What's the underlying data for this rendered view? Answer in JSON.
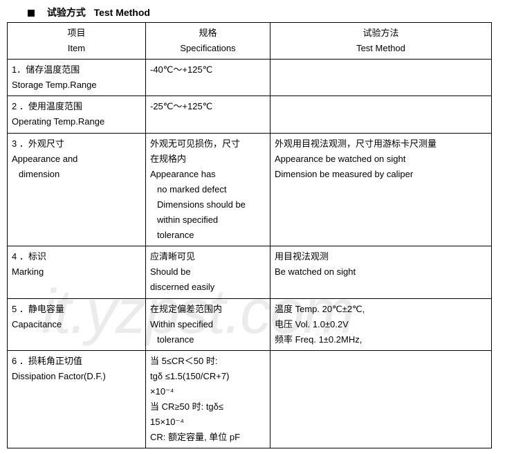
{
  "heading": {
    "cn": "试验方式",
    "en": "Test Method"
  },
  "header": {
    "item_cn": "项目",
    "item_en": "Item",
    "spec_cn": "规格",
    "spec_en": "Specifications",
    "method_cn": "试验方法",
    "method_en": "Test Method"
  },
  "rows": {
    "r1": {
      "item_cn": "1．储存温度范围",
      "item_en": "Storage Temp.Range",
      "spec": "-40℃～+125℃",
      "method": ""
    },
    "r2": {
      "item_cn": "2 ．使用温度范围",
      "item_en": "Operating Temp.Range",
      "spec": "-25℃～+125℃",
      "method": ""
    },
    "r3": {
      "item_cn": "3 ．外观尺寸",
      "item_en1": "Appearance and",
      "item_en2": "dimension",
      "spec_cn1": "外观无可见损伤，尺寸",
      "spec_cn2": "在规格内",
      "spec_en1": "Appearance has",
      "spec_en2": "no marked defect",
      "spec_en3": "Dimensions should be",
      "spec_en4": "within    specified",
      "spec_en5": "tolerance",
      "method_cn": "外观用目视法观测，尺寸用游标卡尺测量",
      "method_en1": "Appearance be watched on sight",
      "method_en2": "Dimension be measured by caliper"
    },
    "r4": {
      "item_cn": "4 ．标识",
      "item_en": "Marking",
      "spec_cn": "应清晰可见",
      "spec_en1": "Should be",
      "spec_en2": "discerned easily",
      "method_cn": "用目视法观测",
      "method_en": "Be watched on sight"
    },
    "r5": {
      "item_cn": "5 ．静电容量",
      "item_en": "Capacitance",
      "spec_cn": "在规定偏差范围内",
      "spec_en1": "Within specified",
      "spec_en2": "tolerance",
      "method_l1": "温度 Temp. 20℃±2℃,",
      "method_l2": "电压 Vol.   1.0±0.2V",
      "method_l3": "频率 Freq. 1±0.2MHz,"
    },
    "r6": {
      "item_cn": "6 ．损耗角正切值",
      "item_en": "Dissipation Factor(D.F.)",
      "spec_l1": "当 5≤CR＜50 时:",
      "spec_l2": "tgδ ≤1.5(150/CR+7)",
      "spec_l3": "×10⁻⁴",
      "spec_l4": "当 CR≥50 时: tgδ≤",
      "spec_l5": "15×10⁻⁴",
      "spec_l6": "CR: 额定容量, 单位 pF",
      "method": ""
    }
  },
  "watermark": "it.yzpst.com"
}
